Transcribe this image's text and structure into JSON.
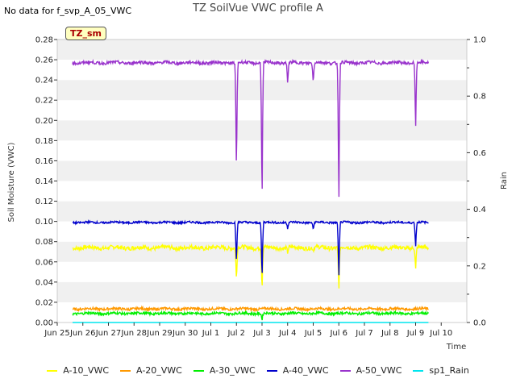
{
  "header": {
    "note": "No data for f_svp_A_05_VWC",
    "badge": "TZ_sm"
  },
  "chart_data": {
    "type": "line",
    "title": "TZ SoilVue VWC profile A",
    "xlabel": "Time",
    "ylabel": "Soil Moisture (VWC)",
    "y2label": "Rain",
    "ylim": [
      0.0,
      0.28
    ],
    "y2lim": [
      0.0,
      1.0
    ],
    "xlim": [
      0,
      16
    ],
    "grid": "alternating horizontal bands",
    "legend_position": "bottom",
    "x_ticks": [
      {
        "value": 0,
        "label": "Jun 25"
      },
      {
        "value": 1,
        "label": "Jun 26"
      },
      {
        "value": 2,
        "label": "Jun 27"
      },
      {
        "value": 3,
        "label": "Jun 28"
      },
      {
        "value": 4,
        "label": "Jun 29"
      },
      {
        "value": 5,
        "label": "Jun 30"
      },
      {
        "value": 6,
        "label": "Jul 1"
      },
      {
        "value": 7,
        "label": "Jul 2"
      },
      {
        "value": 8,
        "label": "Jul 3"
      },
      {
        "value": 9,
        "label": "Jul 4"
      },
      {
        "value": 10,
        "label": "Jul 5"
      },
      {
        "value": 11,
        "label": "Jul 6"
      },
      {
        "value": 12,
        "label": "Jul 7"
      },
      {
        "value": 13,
        "label": "Jul 8"
      },
      {
        "value": 14,
        "label": "Jul 9"
      },
      {
        "value": 15,
        "label": "Jul 10"
      }
    ],
    "y_ticks": [
      "0.00",
      "0.02",
      "0.04",
      "0.06",
      "0.08",
      "0.10",
      "0.12",
      "0.14",
      "0.16",
      "0.18",
      "0.20",
      "0.22",
      "0.24",
      "0.26",
      "0.28"
    ],
    "y2_ticks": [
      "0.0",
      "0.2",
      "0.4",
      "0.6",
      "0.8",
      "1.0"
    ],
    "x_start": 0.6,
    "x_end": 14.5,
    "series": [
      {
        "name": "A-10_VWC",
        "color": "#ffff00",
        "base": 0.074,
        "noise": 0.002,
        "dips": [
          [
            7.0,
            0.04
          ],
          [
            8.0,
            0.029
          ],
          [
            9.0,
            0.069
          ],
          [
            10.0,
            0.071
          ],
          [
            11.0,
            0.029
          ],
          [
            14.0,
            0.05
          ]
        ]
      },
      {
        "name": "A-20_VWC",
        "color": "#ff9900",
        "base": 0.0135,
        "noise": 0.0012,
        "dips": []
      },
      {
        "name": "A-30_VWC",
        "color": "#00ee00",
        "base": 0.009,
        "noise": 0.0012,
        "dips": [
          [
            8.0,
            0.002
          ]
        ]
      },
      {
        "name": "A-40_VWC",
        "color": "#0000cc",
        "base": 0.099,
        "noise": 0.001,
        "dips": [
          [
            7.0,
            0.055
          ],
          [
            8.0,
            0.038
          ],
          [
            9.0,
            0.093
          ],
          [
            10.0,
            0.091
          ],
          [
            11.0,
            0.037
          ],
          [
            14.0,
            0.072
          ]
        ]
      },
      {
        "name": "A-50_VWC",
        "color": "#9933cc",
        "base": 0.257,
        "noise": 0.0015,
        "dips": [
          [
            7.0,
            0.142
          ],
          [
            8.0,
            0.106
          ],
          [
            9.0,
            0.236
          ],
          [
            10.0,
            0.235
          ],
          [
            11.0,
            0.104
          ],
          [
            14.0,
            0.186
          ]
        ]
      },
      {
        "name": "sp1_Rain",
        "color": "#00e5ee",
        "base": 0.0,
        "noise": 0.0,
        "axis": "y2",
        "dips": []
      }
    ]
  }
}
